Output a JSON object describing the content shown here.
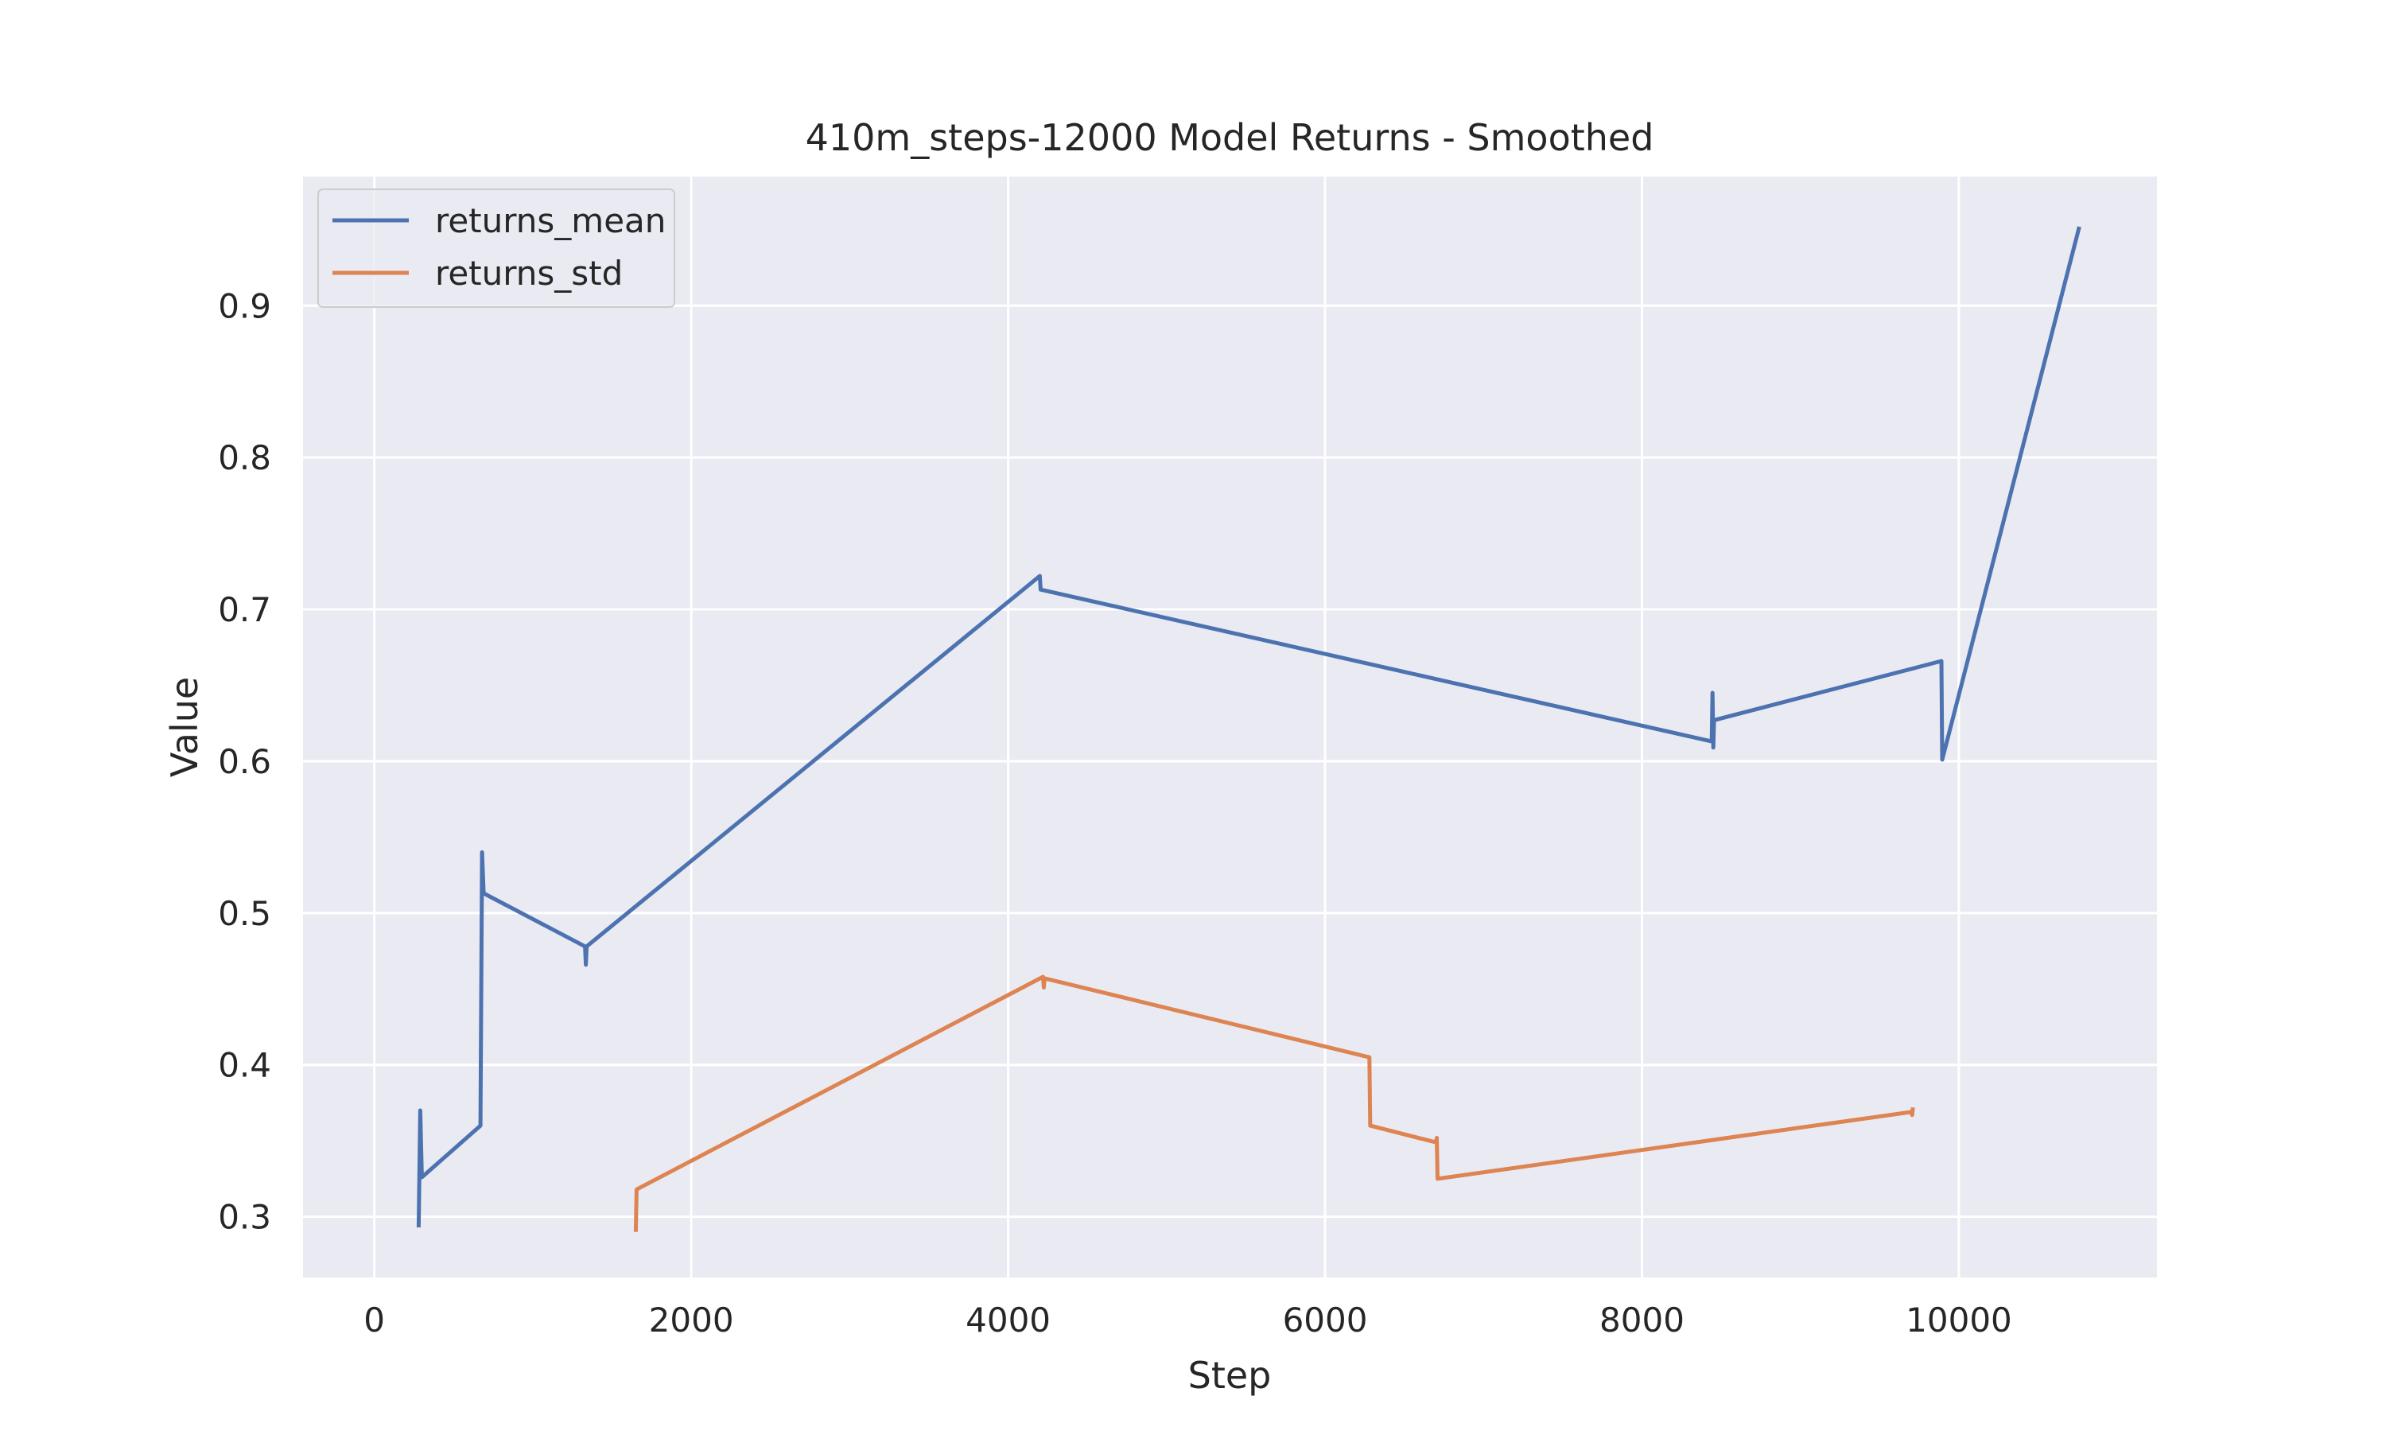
{
  "chart_data": {
    "type": "line",
    "title": "410m_steps-12000 Model Returns - Smoothed",
    "xlabel": "Step",
    "ylabel": "Value",
    "xlim": [
      -450,
      11250
    ],
    "ylim": [
      0.26,
      0.985
    ],
    "xticks": [
      0,
      2000,
      4000,
      6000,
      8000,
      10000
    ],
    "xtick_labels": [
      "0",
      "2000",
      "4000",
      "6000",
      "8000",
      "10000"
    ],
    "yticks": [
      0.3,
      0.4,
      0.5,
      0.6,
      0.7,
      0.8,
      0.9
    ],
    "ytick_labels": [
      "0.3",
      "0.4",
      "0.5",
      "0.6",
      "0.7",
      "0.8",
      "0.9"
    ],
    "grid": true,
    "legend_position": "upper-left",
    "background_color": "#eaeaf2",
    "grid_color": "#ffffff",
    "series": [
      {
        "name": "returns_mean",
        "color": "#4c72b0",
        "points": [
          [
            280,
            0.293
          ],
          [
            290,
            0.37
          ],
          [
            300,
            0.326
          ],
          [
            670,
            0.36
          ],
          [
            680,
            0.54
          ],
          [
            690,
            0.513
          ],
          [
            1330,
            0.478
          ],
          [
            1335,
            0.466
          ],
          [
            1340,
            0.478
          ],
          [
            4200,
            0.722
          ],
          [
            4205,
            0.713
          ],
          [
            8440,
            0.613
          ],
          [
            8445,
            0.645
          ],
          [
            8450,
            0.609
          ],
          [
            8455,
            0.627
          ],
          [
            9890,
            0.666
          ],
          [
            9895,
            0.601
          ],
          [
            10760,
            0.952
          ]
        ]
      },
      {
        "name": "returns_std",
        "color": "#dd8452",
        "points": [
          [
            1650,
            0.29
          ],
          [
            1655,
            0.318
          ],
          [
            4220,
            0.458
          ],
          [
            4225,
            0.451
          ],
          [
            4230,
            0.457
          ],
          [
            6280,
            0.405
          ],
          [
            6285,
            0.36
          ],
          [
            6700,
            0.349
          ],
          [
            6705,
            0.352
          ],
          [
            6710,
            0.325
          ],
          [
            9700,
            0.369
          ],
          [
            9705,
            0.367
          ],
          [
            9710,
            0.372
          ]
        ]
      }
    ]
  }
}
